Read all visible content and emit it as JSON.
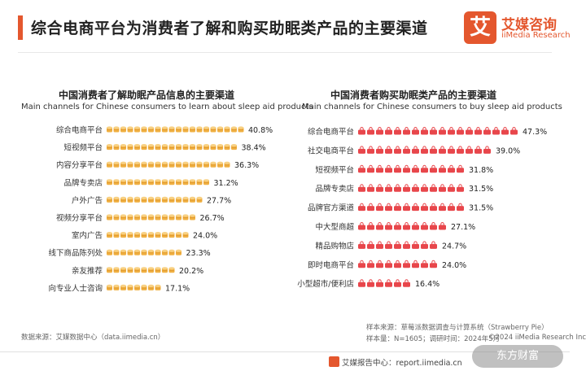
{
  "header": {
    "title": "综合电商平台为消费者了解和购买助眠类产品的主要渠道",
    "logo_icon": "艾",
    "logo_cn": "艾媒咨询",
    "logo_en": "iiMedia Research",
    "brand_color": "#e4572e"
  },
  "chart_data": [
    {
      "type": "bar",
      "orientation": "horizontal",
      "title": "中国消费者了解助眠产品信息的主要渠道",
      "subtitle": "Main channels for Chinese consumers to learn about sleep aid products",
      "icon": "coin-stack-icon",
      "color": "#f0b042",
      "categories": [
        "综合电商平台",
        "短视频平台",
        "内容分享平台",
        "品牌专卖店",
        "户外广告",
        "视频分享平台",
        "室内广告",
        "线下商品陈列处",
        "亲友推荐",
        "向专业人士咨询"
      ],
      "values": [
        40.8,
        38.4,
        36.3,
        31.2,
        27.7,
        26.7,
        24.0,
        23.3,
        20.2,
        17.1
      ],
      "value_labels": [
        "40.8%",
        "38.4%",
        "36.3%",
        "31.2%",
        "27.7%",
        "26.7%",
        "24.0%",
        "23.3%",
        "20.2%",
        "17.1%"
      ],
      "unit": "%"
    },
    {
      "type": "bar",
      "orientation": "horizontal",
      "title": "中国消费者购买助眠类产品的主要渠道",
      "subtitle": "Main channels for Chinese consumers to buy sleep aid products",
      "icon": "shopping-bag-icon",
      "color": "#e8464b",
      "categories": [
        "综合电商平台",
        "社交电商平台",
        "短视频平台",
        "品牌专卖店",
        "品牌官方渠道",
        "中大型商超",
        "精品购物店",
        "即时电商平台",
        "小型超市/便利店"
      ],
      "values": [
        47.3,
        39.0,
        31.8,
        31.5,
        31.5,
        27.1,
        24.7,
        24.0,
        16.4
      ],
      "value_labels": [
        "47.3%",
        "39.0%",
        "31.8%",
        "31.5%",
        "31.5%",
        "27.1%",
        "24.7%",
        "24.0%",
        "16.4%"
      ],
      "unit": "%"
    }
  ],
  "footer": {
    "source_left": "数据来源：艾媒数据中心（data.iimedia.cn）",
    "source_right_1": "样本来源：草莓派数据调查与计算系统（Strawberry Pie）",
    "source_right_2": "样本量：N=1605；调研时间：2024年5月",
    "copyright": "©2024  iiMedia Research Inc",
    "report_site": "艾媒报告中心：report.iimedia.cn",
    "watermark": "东方财富"
  }
}
